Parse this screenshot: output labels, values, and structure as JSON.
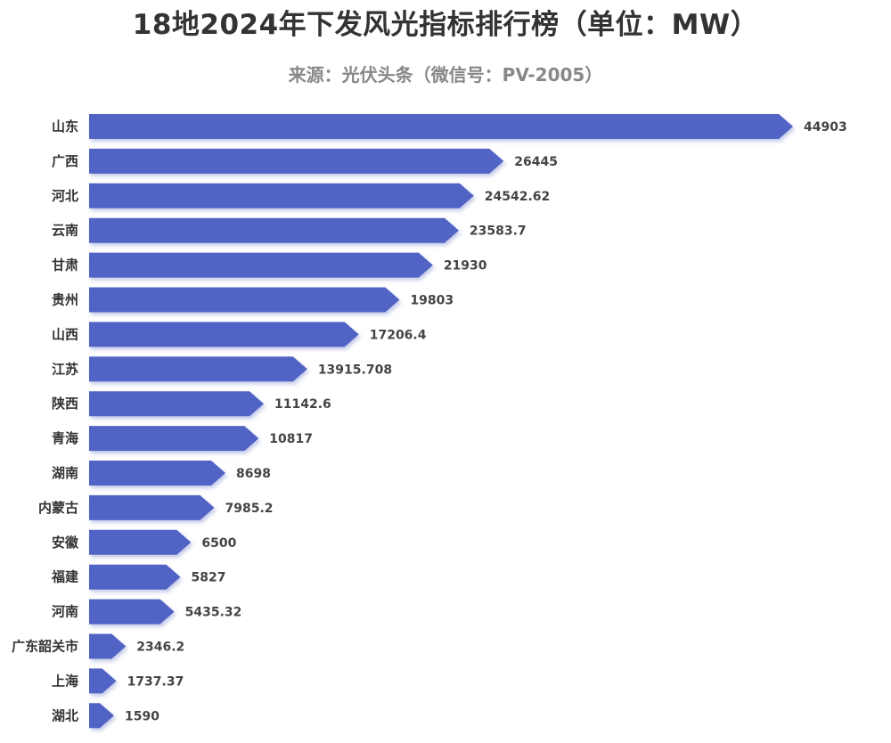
{
  "chart_data": {
    "type": "bar",
    "orientation": "horizontal",
    "title": "18地2024年下发风光指标排行榜（单位：MW）",
    "subtitle": "来源：光伏头条（微信号：PV-2005）",
    "categories": [
      "山东",
      "广西",
      "河北",
      "云南",
      "甘肃",
      "贵州",
      "山西",
      "江苏",
      "陕西",
      "青海",
      "湖南",
      "内蒙古",
      "安徽",
      "福建",
      "河南",
      "广东韶关市",
      "上海",
      "湖北"
    ],
    "values": [
      44903,
      26445,
      24542.62,
      23583.7,
      21930,
      19803,
      17206.4,
      13915.708,
      11142.6,
      10817,
      8698,
      7985.2,
      6500,
      5827,
      5435.32,
      2346.2,
      1737.37,
      1590
    ],
    "value_labels": [
      "44903",
      "26445",
      "24542.62",
      "23583.7",
      "21930",
      "19803",
      "17206.4",
      "13915.708",
      "11142.6",
      "10817",
      "8698",
      "7985.2",
      "6500",
      "5827",
      "5435.32",
      "2346.2",
      "1737.37",
      "1590"
    ],
    "bar_shape": "arrow",
    "xlim": [
      0,
      44903
    ],
    "grid": false,
    "legend": "none",
    "colors": {
      "bar": "#5163c4",
      "bar_shadow": "#c5cbe9"
    }
  }
}
